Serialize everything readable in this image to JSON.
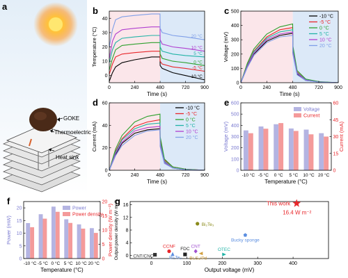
{
  "colors": {
    "m10": "#000000",
    "m5": "#e8262a",
    "p0": "#2da02d",
    "p5": "#20b3a6",
    "p10": "#b03fd0",
    "p20": "#7f9fe8",
    "voltage_bar": "#b4b4e2",
    "current_bar": "#f49a9a",
    "pinkbg": "#fbe6ea",
    "bluebg": "#dce9f8",
    "star": "#e8262a",
    "red_label": "#e8262a"
  },
  "panels": {
    "a": {
      "label": "a",
      "text": {
        "goke": "GOKE",
        "thermoelectric": "Thermoelectric",
        "heat_sink": "Heat sink"
      }
    },
    "b": {
      "label": "b",
      "xlabel": "Time (s)",
      "ylabel": "Temperature (°C)"
    },
    "c": {
      "label": "c",
      "xlabel": "Time (s)",
      "ylabel": "Voltage (mV)"
    },
    "d": {
      "label": "d",
      "xlabel": "Time (s)",
      "ylabel": "Current (mA)"
    },
    "e": {
      "label": "e",
      "xlabel": "Temperature (°C)",
      "ylabel_left": "Voltage (mV)",
      "ylabel_right": "Current (mA)",
      "legend": [
        "Voltage",
        "Current"
      ]
    },
    "f": {
      "label": "f",
      "xlabel": "Temperature (°C)",
      "ylabel_left": "Power (mW)",
      "ylabel_right": "Power density (W m⁻²)",
      "legend": [
        "Power",
        "Power density"
      ]
    },
    "g": {
      "label": "g",
      "xlabel": "Output voltage (mV)",
      "ylabel": "Output power density (W m⁻²)",
      "this_work": "This work",
      "this_work_value": "16.4 W m⁻²"
    }
  },
  "legend_temps": [
    "-10 °C",
    "-5 °C",
    "0 °C",
    "5 °C",
    "10 °C",
    "20 °C"
  ],
  "chart_data": [
    {
      "panel": "b",
      "type": "line",
      "xlabel": "Time (s)",
      "ylabel": "Temperature (°C)",
      "xlim": [
        0,
        900
      ],
      "ylim": [
        -5,
        45
      ],
      "xticks": [
        0,
        240,
        480,
        720,
        900
      ],
      "yticks": [
        0,
        10,
        20,
        30,
        40
      ],
      "series": [
        {
          "name": "-10 °C",
          "plateau": 13,
          "end": -3,
          "x": [
            0,
            30,
            60,
            120,
            240,
            400,
            479,
            480,
            500,
            600,
            720,
            900
          ],
          "y": [
            -4,
            2,
            6,
            9,
            11,
            13,
            13,
            7,
            5,
            2,
            0,
            -3
          ]
        },
        {
          "name": "-5 °C",
          "plateau": 17,
          "end": 3,
          "x": [
            0,
            30,
            60,
            120,
            240,
            400,
            479,
            480,
            500,
            600,
            720,
            900
          ],
          "y": [
            1,
            8,
            13,
            15,
            16,
            17,
            17,
            10,
            8,
            6,
            5,
            3
          ]
        },
        {
          "name": "0 °C",
          "plateau": 23,
          "end": 7,
          "x": [
            0,
            30,
            60,
            120,
            240,
            400,
            479,
            480,
            500,
            600,
            720,
            900
          ],
          "y": [
            4,
            12,
            18,
            21,
            22,
            23,
            23,
            15,
            12,
            10,
            9,
            7
          ]
        },
        {
          "name": "5 °C",
          "plateau": 28,
          "end": 13,
          "x": [
            0,
            30,
            60,
            120,
            240,
            400,
            479,
            480,
            500,
            600,
            720,
            900
          ],
          "y": [
            9,
            18,
            23,
            26,
            27,
            28,
            28,
            20,
            17,
            15,
            14,
            13
          ]
        },
        {
          "name": "10 °C",
          "plateau": 34,
          "end": 17,
          "x": [
            0,
            30,
            60,
            120,
            240,
            400,
            479,
            480,
            500,
            600,
            720,
            900
          ],
          "y": [
            12,
            24,
            29,
            32,
            33,
            34,
            34,
            25,
            22,
            20,
            19,
            17
          ]
        },
        {
          "name": "20 °C",
          "plateau": 43,
          "end": 25,
          "x": [
            0,
            30,
            60,
            120,
            240,
            400,
            479,
            480,
            500,
            600,
            720,
            900
          ],
          "y": [
            20,
            32,
            39,
            41,
            42,
            43,
            43,
            33,
            30,
            28,
            27,
            25
          ]
        }
      ],
      "series_labels_on_plot": [
        "20 °C",
        "10 °C",
        "5 °C",
        "0 °C",
        "-5 °C",
        "-10 °C"
      ]
    },
    {
      "panel": "c",
      "type": "line",
      "xlabel": "Time (s)",
      "ylabel": "Voltage (mV)",
      "xlim": [
        0,
        900
      ],
      "ylim": [
        0,
        500
      ],
      "xticks": [
        0,
        240,
        480,
        720,
        900
      ],
      "yticks": [
        0,
        100,
        200,
        300,
        400,
        500
      ],
      "series": [
        {
          "name": "-10 °C",
          "x": [
            0,
            60,
            120,
            240,
            360,
            479,
            480,
            520,
            600,
            720,
            900
          ],
          "y": [
            0,
            110,
            200,
            290,
            330,
            345,
            210,
            60,
            15,
            5,
            0
          ]
        },
        {
          "name": "-5 °C",
          "x": [
            0,
            60,
            120,
            240,
            360,
            479,
            480,
            520,
            600,
            720,
            900
          ],
          "y": [
            0,
            125,
            220,
            320,
            370,
            385,
            240,
            75,
            20,
            5,
            0
          ]
        },
        {
          "name": "0 °C",
          "x": [
            0,
            60,
            120,
            240,
            360,
            479,
            480,
            520,
            600,
            720,
            900
          ],
          "y": [
            0,
            135,
            235,
            340,
            390,
            410,
            260,
            85,
            25,
            8,
            0
          ]
        },
        {
          "name": "5 °C",
          "x": [
            0,
            60,
            120,
            240,
            360,
            479,
            480,
            520,
            600,
            720,
            900
          ],
          "y": [
            0,
            120,
            215,
            310,
            355,
            370,
            230,
            70,
            20,
            5,
            0
          ]
        },
        {
          "name": "10 °C",
          "x": [
            0,
            60,
            120,
            240,
            360,
            479,
            480,
            520,
            600,
            720,
            900
          ],
          "y": [
            0,
            115,
            205,
            300,
            340,
            355,
            220,
            65,
            18,
            5,
            0
          ]
        },
        {
          "name": "20 °C",
          "x": [
            0,
            60,
            120,
            240,
            360,
            479,
            480,
            520,
            600,
            720,
            900
          ],
          "y": [
            0,
            105,
            190,
            280,
            320,
            330,
            200,
            55,
            15,
            4,
            0
          ]
        }
      ]
    },
    {
      "panel": "d",
      "type": "line",
      "xlabel": "Time (s)",
      "ylabel": "Current (mA)",
      "xlim": [
        0,
        900
      ],
      "ylim": [
        0,
        60
      ],
      "xticks": [
        0,
        240,
        480,
        720,
        900
      ],
      "yticks": [
        0,
        20,
        40,
        60
      ],
      "series": [
        {
          "name": "-10 °C",
          "x": [
            0,
            60,
            120,
            240,
            360,
            479,
            480,
            520,
            600,
            720,
            900
          ],
          "y": [
            0,
            14,
            24,
            33,
            36,
            37,
            22,
            7,
            2,
            0.5,
            0
          ]
        },
        {
          "name": "-5 °C",
          "x": [
            0,
            60,
            120,
            240,
            360,
            479,
            480,
            520,
            600,
            720,
            900
          ],
          "y": [
            0,
            17,
            28,
            39,
            43,
            45,
            27,
            9,
            3,
            1,
            0
          ]
        },
        {
          "name": "0 °C",
          "x": [
            0,
            60,
            120,
            240,
            360,
            479,
            480,
            520,
            600,
            720,
            900
          ],
          "y": [
            0,
            19,
            31,
            43,
            48,
            50,
            30,
            10,
            3,
            1,
            0
          ]
        },
        {
          "name": "5 °C",
          "x": [
            0,
            60,
            120,
            240,
            360,
            479,
            480,
            520,
            600,
            720,
            900
          ],
          "y": [
            0,
            16,
            27,
            37,
            41,
            42,
            25,
            8,
            2,
            0.5,
            0
          ]
        },
        {
          "name": "10 °C",
          "x": [
            0,
            60,
            120,
            240,
            360,
            479,
            480,
            520,
            600,
            720,
            900
          ],
          "y": [
            0,
            15,
            25,
            35,
            38,
            39,
            23,
            7,
            2,
            0.5,
            0
          ]
        },
        {
          "name": "20 °C",
          "x": [
            0,
            60,
            120,
            240,
            360,
            479,
            480,
            520,
            600,
            720,
            900
          ],
          "y": [
            0,
            13,
            22,
            31,
            35,
            36,
            21,
            6,
            2,
            0.5,
            0
          ]
        }
      ]
    },
    {
      "panel": "e",
      "type": "bar",
      "xlabel": "Temperature (°C)",
      "ylabel_left": "Voltage (mV)",
      "ylabel_right": "Current (mA)",
      "categories": [
        "-10 °C",
        "-5 °C",
        "0 °C",
        "5 °C",
        "10 °C",
        "20 °C"
      ],
      "ylim_left": [
        0,
        600
      ],
      "yticks_left": [
        0,
        100,
        200,
        300,
        400,
        500,
        600
      ],
      "ylim_right": [
        0,
        60
      ],
      "yticks_right": [
        0,
        15,
        30,
        45,
        60
      ],
      "series": [
        {
          "name": "Voltage",
          "axis": "left",
          "values": [
            355,
            390,
            410,
            372,
            362,
            330
          ]
        },
        {
          "name": "Current",
          "axis": "right",
          "values": [
            33,
            37,
            42,
            35,
            32,
            30
          ]
        }
      ]
    },
    {
      "panel": "f",
      "type": "bar",
      "xlabel": "Temperature (°C)",
      "ylabel_left": "Power (mW)",
      "ylabel_right": "Power density (W m⁻²)",
      "categories": [
        "-10 °C",
        "-5 °C",
        "0 °C",
        "5 °C",
        "10 °C",
        "20 °C"
      ],
      "ylim_left": [
        0,
        22.5
      ],
      "yticks_left": [
        0,
        5,
        10,
        15,
        20
      ],
      "ylim_right": [
        0,
        20
      ],
      "yticks_right": [
        0,
        5,
        10,
        15,
        20
      ],
      "series": [
        {
          "name": "Power",
          "axis": "left",
          "values": [
            14,
            17.5,
            20.5,
            15.5,
            13.5,
            12
          ]
        },
        {
          "name": "Power density",
          "axis": "right",
          "values": [
            11,
            14,
            16.4,
            12.5,
            10.5,
            9
          ]
        }
      ]
    },
    {
      "panel": "g",
      "type": "scatter",
      "xlabel": "Output voltage (mV)",
      "ylabel": "Output power density (W m⁻²)",
      "xlim": [
        -60,
        500
      ],
      "ylim": [
        -1,
        17
      ],
      "xticks": [
        0,
        100,
        200,
        300,
        400
      ],
      "yticks": [
        0,
        4,
        8,
        12,
        16
      ],
      "points": [
        {
          "name": "CNT/CNC",
          "x": 10,
          "y": 0.2,
          "marker": "square",
          "color": "#333333"
        },
        {
          "name": "CCNF",
          "x": 50,
          "y": 1.3,
          "marker": "circle",
          "color": "#e8262a"
        },
        {
          "name": "Bi₂Te₃",
          "x": 60,
          "y": 0.4,
          "marker": "triangle",
          "color": "#5b8ee0"
        },
        {
          "name": "FDC",
          "x": 95,
          "y": 0.3,
          "marker": "square",
          "color": "#222222"
        },
        {
          "name": "Bi₂Te₃",
          "x": 130,
          "y": 10,
          "marker": "circle",
          "color": "#8a8a1a"
        },
        {
          "name": "CNT",
          "x": 125,
          "y": 1.3,
          "marker": "diamond",
          "color": "#a050d0"
        },
        {
          "name": "Bi₂S₃/Pd",
          "x": 140,
          "y": 0.6,
          "marker": "triangle-left",
          "color": "#d2a040"
        },
        {
          "name": "OTEC",
          "x": 205,
          "y": 0.3,
          "marker": "triangle-right",
          "color": "#20b3a6"
        },
        {
          "name": "Bucky sponge",
          "x": 265,
          "y": 6.4,
          "marker": "pentagon",
          "color": "#5b8ee0"
        },
        {
          "name": "This work",
          "x": 410,
          "y": 16.4,
          "marker": "star",
          "color": "#e8262a"
        }
      ]
    }
  ]
}
